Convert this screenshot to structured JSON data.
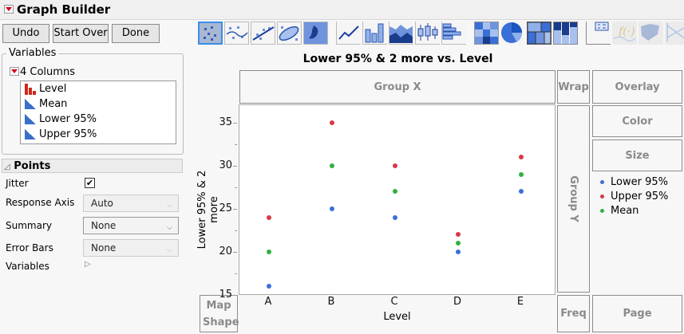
{
  "window": {
    "title": "Graph Builder"
  },
  "buttons": {
    "undo": "Undo",
    "start_over": "Start Over",
    "done": "Done"
  },
  "variables": {
    "legend": "Variables",
    "columns_label": "4 Columns",
    "items": [
      {
        "name": "Level",
        "type": "nominal"
      },
      {
        "name": "Mean",
        "type": "continuous"
      },
      {
        "name": "Lower 95%",
        "type": "continuous"
      },
      {
        "name": "Upper 95%",
        "type": "continuous"
      }
    ]
  },
  "points_panel": {
    "title": "Points",
    "jitter_label": "Jitter",
    "jitter_checked": true,
    "response_axis_label": "Response Axis",
    "response_axis_value": "Auto",
    "summary_label": "Summary",
    "summary_value": "None",
    "error_bars_label": "Error Bars",
    "error_bars_value": "None",
    "variables_label": "Variables"
  },
  "toolbar": {
    "elements": [
      "points",
      "smoother",
      "line-of-fit",
      "ellipse",
      "contour",
      "line",
      "bar",
      "area",
      "box-plot",
      "histogram",
      "heatmap",
      "pie",
      "treemap",
      "mosaic",
      "caption-box",
      "formula",
      "map-shapes",
      "parallel"
    ],
    "selected": "points"
  },
  "drop_zones": {
    "group_x": "Group X",
    "wrap": "Wrap",
    "overlay": "Overlay",
    "color": "Color",
    "size": "Size",
    "group_y": "Group Y",
    "map_shape": "Map Shape",
    "freq": "Freq",
    "page": "Page"
  },
  "legend": {
    "items": [
      {
        "label": "Lower 95%",
        "color": "#3a6fd8"
      },
      {
        "label": "Upper 95%",
        "color": "#d8384a"
      },
      {
        "label": "Mean",
        "color": "#33b040"
      }
    ]
  },
  "chart_data": {
    "type": "scatter",
    "title": "Lower 95% & 2 more vs. Level",
    "xlabel": "Level",
    "ylabel": "Lower 95% & 2 more",
    "categories": [
      "A",
      "B",
      "C",
      "D",
      "E"
    ],
    "ylim": [
      15,
      37
    ],
    "yticks": [
      15,
      20,
      25,
      30,
      35
    ],
    "series": [
      {
        "name": "Lower 95%",
        "color": "#3a6fd8",
        "values": [
          16,
          25,
          24,
          20,
          27
        ]
      },
      {
        "name": "Upper 95%",
        "color": "#d8384a",
        "values": [
          24,
          35,
          30,
          22,
          31
        ]
      },
      {
        "name": "Mean",
        "color": "#33b040",
        "values": [
          20,
          30,
          27,
          21,
          29
        ]
      }
    ],
    "legend_position": "right",
    "grid": false
  }
}
